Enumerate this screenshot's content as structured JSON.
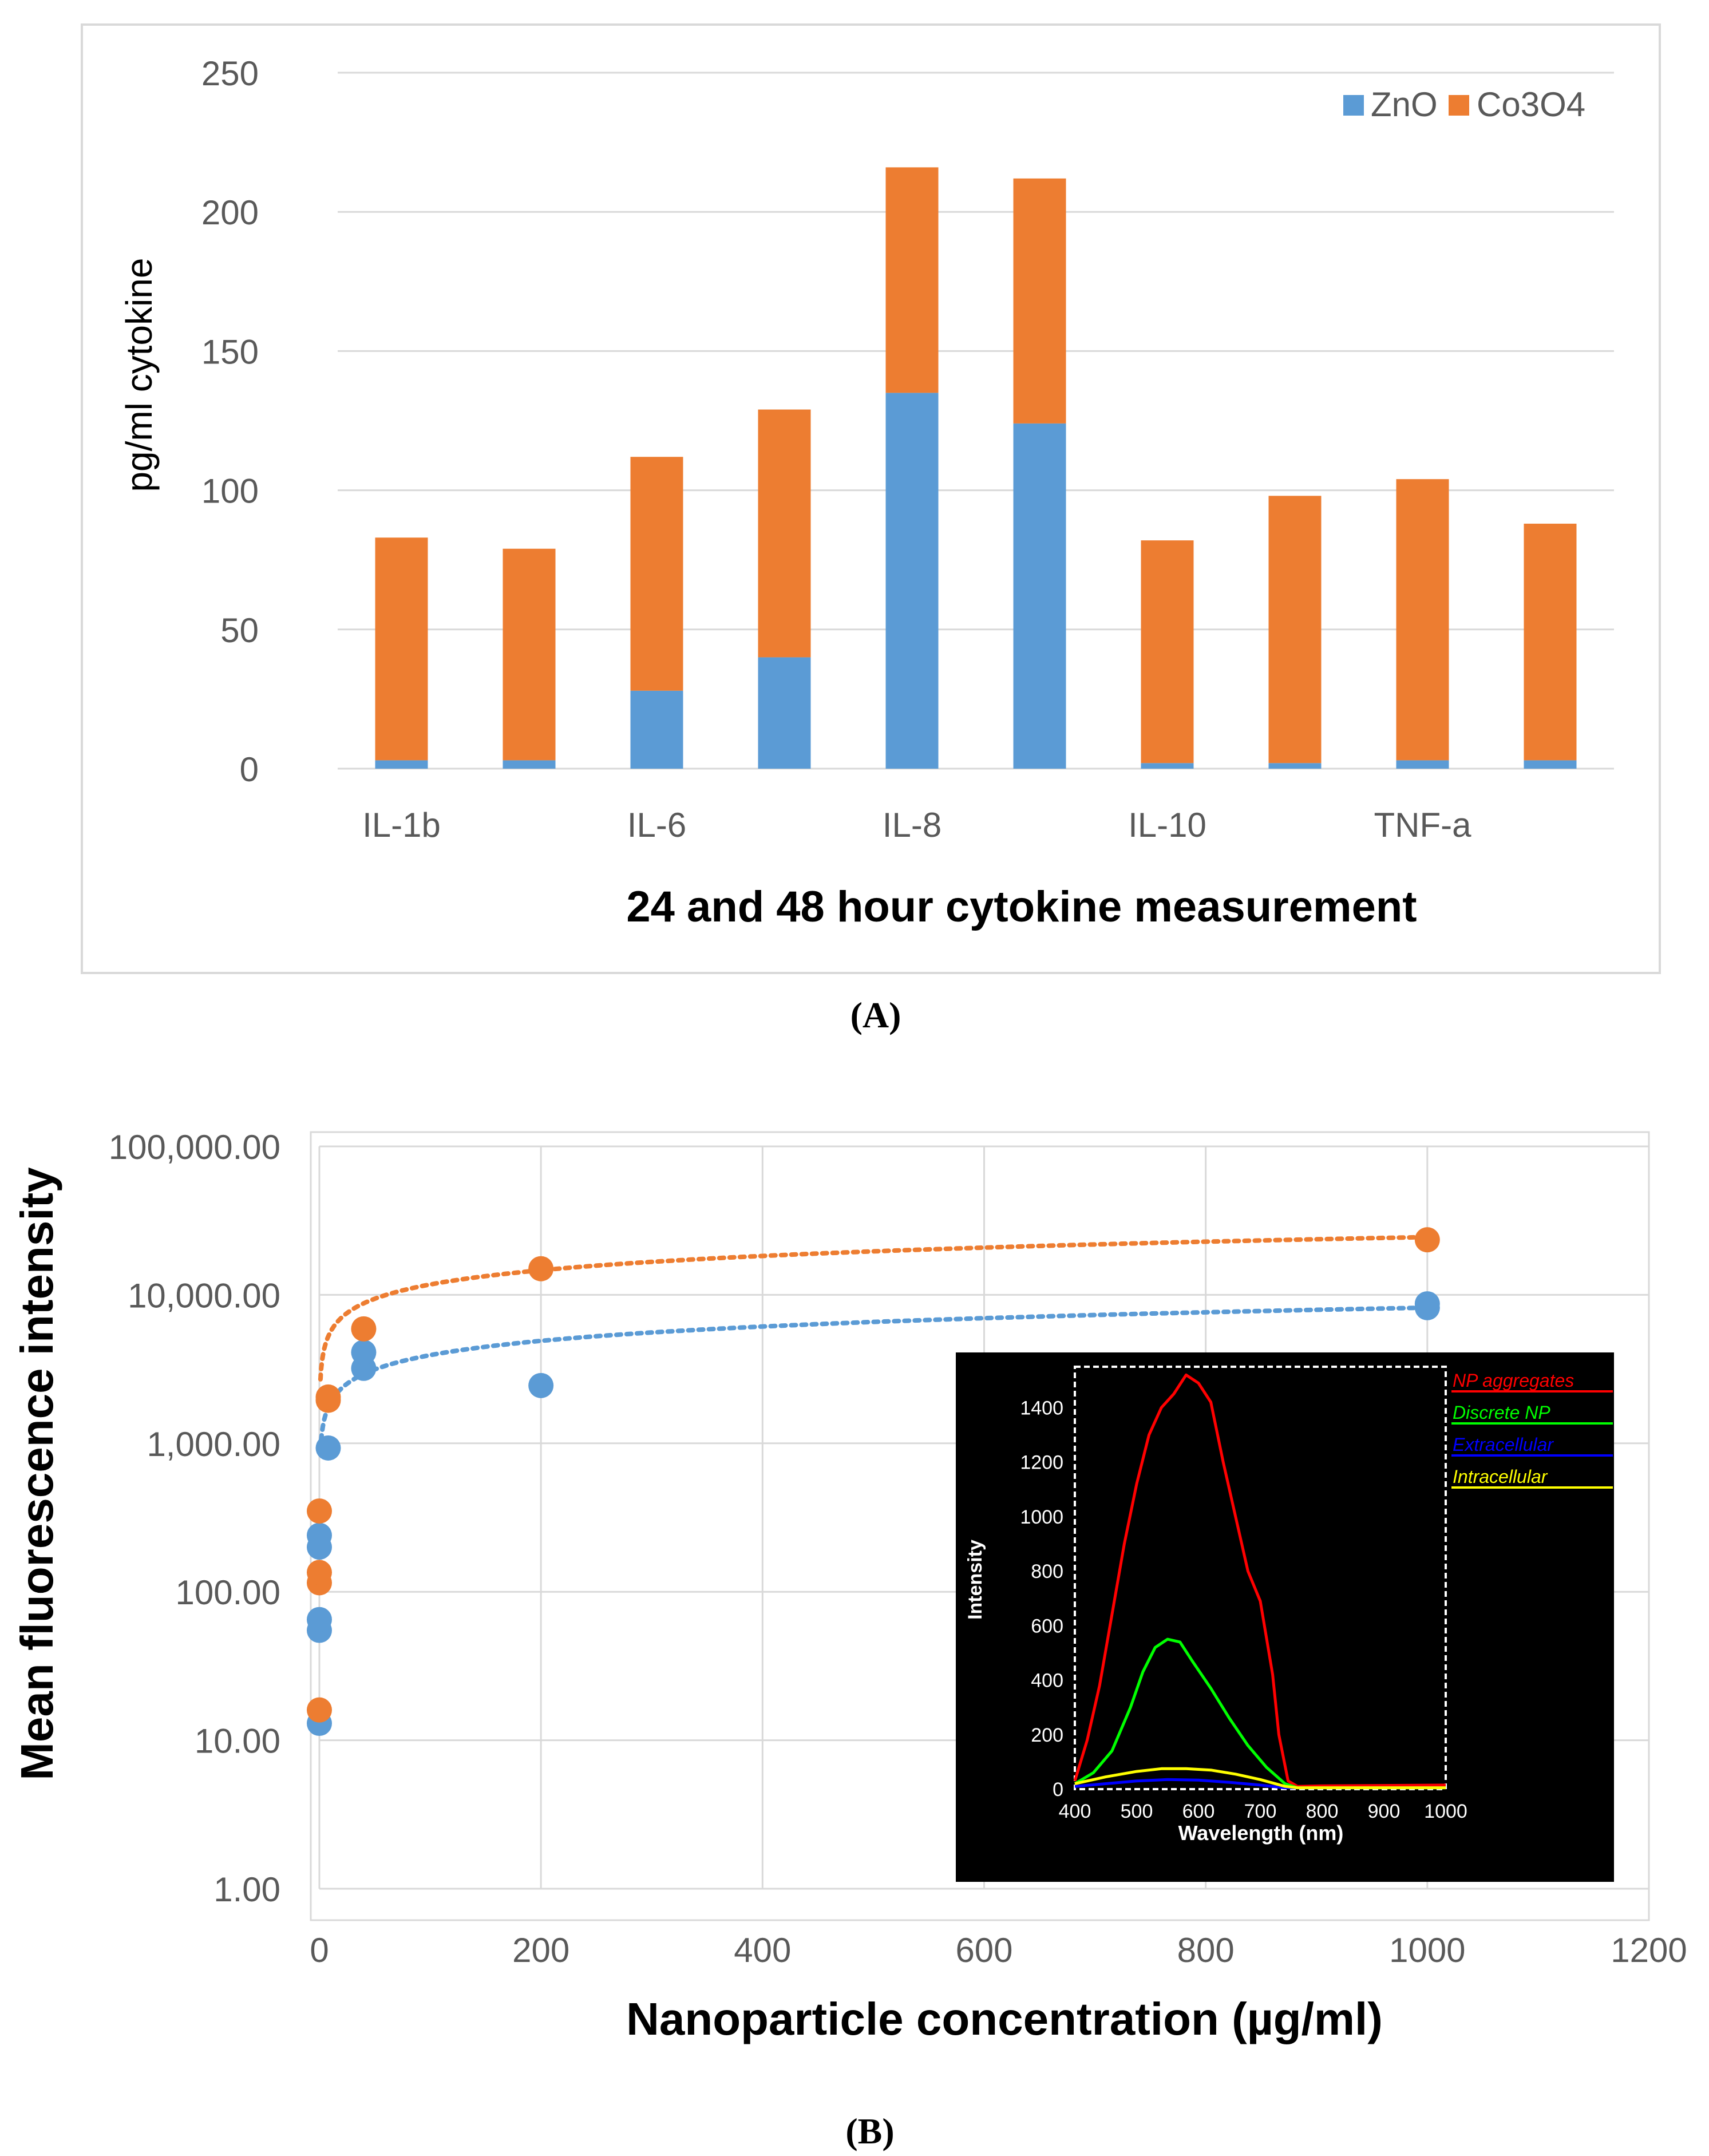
{
  "colors": {
    "zno": "#5b9bd5",
    "co3o4": "#ed7d31",
    "grid": "#d9d9d9",
    "axis_text": "#595959",
    "frame": "#d9d9d9",
    "inset_bg": "#000000",
    "inset_fg": "#ffffff",
    "np_aggregates": "#ff0000",
    "discrete_np": "#00ff00",
    "extracellular": "#0000ff",
    "intracellular": "#ffff00"
  },
  "panel_labels": {
    "a": "(A)",
    "b": "(B)"
  },
  "chart_data": [
    {
      "type": "bar",
      "stacked": true,
      "title": "",
      "xlabel": "24 and 48 hour cytokine measurement",
      "ylabel": "pg/ml cytokine",
      "ylim": [
        0,
        250
      ],
      "yticks": [
        "0",
        "50",
        "100",
        "150",
        "200",
        "250"
      ],
      "ytick_values": [
        0,
        50,
        100,
        150,
        200,
        250
      ],
      "x_tick_labels": [
        "IL-1b",
        "",
        "IL-6",
        "",
        "IL-8",
        "",
        "IL-10",
        "",
        "TNF-a",
        ""
      ],
      "legend_position": "top-right",
      "series": [
        {
          "name": "ZnO",
          "values": [
            3,
            3,
            28,
            40,
            135,
            124,
            2,
            2,
            3,
            3
          ]
        },
        {
          "name": "Co3O4",
          "values": [
            80,
            76,
            84,
            89,
            81,
            88,
            80,
            96,
            101,
            85
          ]
        }
      ]
    },
    {
      "type": "scatter",
      "title": "",
      "xlabel": "Nanoparticle concentration (µg/ml)",
      "ylabel": "Mean fluorescence intensity",
      "xlim": [
        0,
        1200
      ],
      "xticks": [
        "0",
        "200",
        "400",
        "600",
        "800",
        "1000",
        "1200"
      ],
      "xtick_values": [
        0,
        200,
        400,
        600,
        800,
        1000,
        1200
      ],
      "yscale": "log",
      "ylim": [
        1,
        100000
      ],
      "yticks": [
        "1.00",
        "10.00",
        "100.00",
        "1,000.00",
        "10,000.00",
        "100,000.00"
      ],
      "ytick_values": [
        1,
        10,
        100,
        1000,
        10000,
        100000
      ],
      "series": [
        {
          "name": "ZnO",
          "points": [
            [
              0,
              13
            ],
            [
              0,
              55
            ],
            [
              0,
              65
            ],
            [
              0,
              200
            ],
            [
              0,
              240
            ],
            [
              8,
              930
            ],
            [
              40,
              3200
            ],
            [
              40,
              4100
            ],
            [
              200,
              2450
            ],
            [
              1000,
              8200
            ],
            [
              1000,
              8700
            ]
          ],
          "trendline": {
            "type": "logarithmic",
            "y_at_x1": 900,
            "y_at_x1000": 8200
          }
        },
        {
          "name": "Co3O4",
          "points": [
            [
              0,
              16
            ],
            [
              0,
              115
            ],
            [
              0,
              135
            ],
            [
              0,
              350
            ],
            [
              8,
              1950
            ],
            [
              8,
              2050
            ],
            [
              40,
              5900
            ],
            [
              200,
              15000
            ],
            [
              1000,
              23500
            ]
          ],
          "trendline": {
            "type": "logarithmic",
            "y_at_x1": 2700,
            "y_at_x1000": 24500
          }
        }
      ],
      "inset": {
        "type": "line",
        "xlabel": "Wavelength (nm)",
        "ylabel": "Intensity",
        "xlim": [
          400,
          1000
        ],
        "ylim": [
          0,
          1550
        ],
        "xticks": [
          "400",
          "500",
          "600",
          "700",
          "800",
          "900",
          "1000"
        ],
        "xtick_values": [
          400,
          500,
          600,
          700,
          800,
          900,
          1000
        ],
        "yticks": [
          "0",
          "200",
          "400",
          "600",
          "800",
          "1000",
          "1200",
          "1400"
        ],
        "ytick_values": [
          0,
          200,
          400,
          600,
          800,
          1000,
          1200,
          1400
        ],
        "legend_position": "outside-right",
        "series": [
          {
            "name": "NP aggregates",
            "x": [
              400,
              420,
              440,
              460,
              480,
              500,
              520,
              540,
              560,
              580,
              600,
              620,
              640,
              660,
              680,
              700,
              720,
              730,
              745,
              760,
              800,
              1000
            ],
            "y": [
              30,
              180,
              380,
              640,
              900,
              1120,
              1300,
              1400,
              1450,
              1520,
              1490,
              1420,
              1200,
              1000,
              800,
              690,
              420,
              200,
              30,
              10,
              12,
              15
            ]
          },
          {
            "name": "Discrete NP",
            "x": [
              400,
              430,
              460,
              490,
              510,
              530,
              550,
              570,
              590,
              620,
              650,
              680,
              710,
              740,
              760,
              800,
              1000
            ],
            "y": [
              20,
              60,
              140,
              300,
              430,
              520,
              550,
              540,
              470,
              370,
              260,
              160,
              80,
              20,
              5,
              5,
              5
            ]
          },
          {
            "name": "Extracellular",
            "x": [
              400,
              450,
              500,
              550,
              600,
              650,
              700,
              740,
              1000
            ],
            "y": [
              10,
              20,
              30,
              35,
              33,
              25,
              15,
              5,
              5
            ]
          },
          {
            "name": "Intracellular",
            "x": [
              400,
              450,
              500,
              540,
              580,
              620,
              660,
              700,
              740,
              760,
              1000
            ],
            "y": [
              20,
              45,
              65,
              75,
              75,
              70,
              55,
              35,
              10,
              5,
              5
            ]
          }
        ]
      }
    }
  ]
}
